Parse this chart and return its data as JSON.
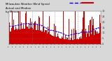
{
  "title": "",
  "bg_color": "#d8d8d8",
  "plot_bg_color": "#ffffff",
  "bar_color": "#cc0000",
  "median_color": "#0000dd",
  "n_points": 1440,
  "seed": 42,
  "ylim": [
    0,
    30
  ],
  "yticks": [
    0,
    5,
    10,
    15,
    20,
    25,
    30
  ],
  "grid_color": "#aaaaaa",
  "legend_actual": "Actual",
  "legend_median": "Median",
  "vline_color": "#777777",
  "vline_positions": [
    0.25,
    0.5,
    0.75
  ]
}
